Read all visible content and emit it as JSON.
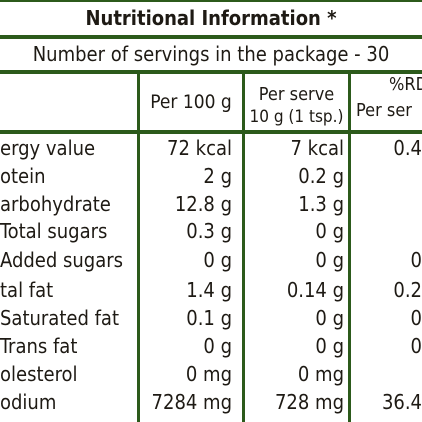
{
  "title": "Nutritional Information *",
  "subtitle": "Number of servings in the package - 30",
  "columns": {
    "per100": "Per 100 g",
    "perserve_line1": "Per serve",
    "perserve_line2": "10 g (1 tsp.)",
    "rdi_line1": "%RD",
    "rdi_line2": "Per ser"
  },
  "rows": [
    {
      "label": "ergy value",
      "per100": "72 kcal",
      "perserve": "7 kcal",
      "rdi": "0.4"
    },
    {
      "label": "otein",
      "per100": "2 g",
      "perserve": "0.2 g",
      "rdi": ""
    },
    {
      "label": "arbohydrate",
      "per100": "12.8 g",
      "perserve": "1.3 g",
      "rdi": ""
    },
    {
      "label": "Total sugars",
      "per100": "0.3 g",
      "perserve": "0 g",
      "rdi": ""
    },
    {
      "label": "Added sugars",
      "per100": "0 g",
      "perserve": "0 g",
      "rdi": "0"
    },
    {
      "label": "tal fat",
      "per100": "1.4 g",
      "perserve": "0.14 g",
      "rdi": "0.2"
    },
    {
      "label": "Saturated fat",
      "per100": "0.1 g",
      "perserve": "0 g",
      "rdi": "0"
    },
    {
      "label": "Trans fat",
      "per100": "0 g",
      "perserve": "0 g",
      "rdi": "0"
    },
    {
      "label": "olesterol",
      "per100": "0 mg",
      "perserve": "0 mg",
      "rdi": ""
    },
    {
      "label": "odium",
      "per100": "7284 mg",
      "perserve": "728 mg",
      "rdi": "36.4"
    }
  ]
}
